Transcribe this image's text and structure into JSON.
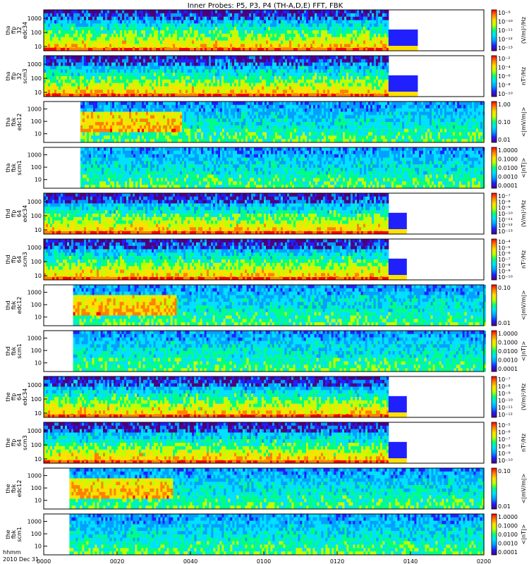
{
  "chart_data": {
    "type": "heatmap",
    "title": "Inner Probes: P5, P3, P4 (TH-A,D,E) FFT, FBK",
    "xaxis": {
      "label_line1": "hhmm",
      "label_line2": "2010 Dec 31",
      "ticks": [
        "0000",
        "0020",
        "0040",
        "0100",
        "0120",
        "0140",
        "0200"
      ],
      "range_minutes": [
        0,
        120
      ]
    },
    "colors": {
      "colormap": [
        "#4b0082",
        "#2020ff",
        "#00a0ff",
        "#00e0ff",
        "#00ff80",
        "#c0ff00",
        "#ffe000",
        "#ff8000",
        "#ff0000"
      ],
      "data_gap": "#ffffff",
      "frame": "#000000"
    },
    "panels": [
      {
        "id": "tha-ffp-edc34",
        "label": [
          "tha",
          "ffp",
          "32",
          "edc34"
        ],
        "yticks": [
          "1000",
          "100",
          "10"
        ],
        "ymin": 5,
        "ymax": 4000,
        "cb_label": "(V/m)²/Hz",
        "cb_ticks": [
          "10⁻⁹",
          "10⁻¹⁰",
          "10⁻¹¹",
          "10⁻¹²",
          "10⁻¹³"
        ],
        "data_start_min": 0,
        "data_end_min": 94,
        "tail_end_min": 102
      },
      {
        "id": "tha-ffp-scm3",
        "label": [
          "tha",
          "ffp",
          "32",
          "scm3"
        ],
        "yticks": [
          "1000",
          "100",
          "10"
        ],
        "ymin": 5,
        "ymax": 4000,
        "cb_label": "nT²/Hz",
        "cb_ticks": [
          "10⁻²",
          "10⁻⁴",
          "10⁻⁶",
          "10⁻⁸",
          "10⁻¹⁰"
        ],
        "data_start_min": 0,
        "data_end_min": 94,
        "tail_end_min": 102
      },
      {
        "id": "tha-fbk-edc12",
        "label": [
          "tha",
          "fbk",
          "edc12"
        ],
        "yticks": [
          "1000",
          "100",
          "10"
        ],
        "ymin": 2,
        "ymax": 4000,
        "cb_label": "<|mV/m|>",
        "cb_ticks": [
          "1.00",
          "0.10",
          "0.01"
        ],
        "data_start_min": 10,
        "data_end_min": 120,
        "tail_end_min": 120
      },
      {
        "id": "tha-fbk-scm1",
        "label": [
          "tha",
          "fbk",
          "scm1"
        ],
        "yticks": [
          "1000",
          "100",
          "10"
        ],
        "ymin": 2,
        "ymax": 4000,
        "cb_label": "<|nT|>",
        "cb_ticks": [
          "1.0000",
          "0.1000",
          "0.0100",
          "0.0010",
          "0.0001"
        ],
        "data_start_min": 10,
        "data_end_min": 120,
        "tail_end_min": 120
      },
      {
        "id": "thd-ffp-edc34",
        "label": [
          "thd",
          "ffp",
          "64",
          "edc34"
        ],
        "yticks": [
          "1000",
          "100",
          "10"
        ],
        "ymin": 5,
        "ymax": 4000,
        "cb_label": "(V/m)²/Hz",
        "cb_ticks": [
          "10⁻⁷",
          "10⁻⁸",
          "10⁻⁹",
          "10⁻¹⁰",
          "10⁻¹¹",
          "10⁻¹²",
          "10⁻¹³"
        ],
        "data_start_min": 0,
        "data_end_min": 94,
        "tail_end_min": 99
      },
      {
        "id": "thd-ffp-scm3",
        "label": [
          "thd",
          "ffp",
          "64",
          "scm3"
        ],
        "yticks": [
          "1000",
          "100",
          "10"
        ],
        "ymin": 5,
        "ymax": 4000,
        "cb_label": "nT²/Hz",
        "cb_ticks": [
          "10⁻⁴",
          "10⁻⁵",
          "10⁻⁶",
          "10⁻⁷",
          "10⁻⁸",
          "10⁻⁹",
          "10⁻¹⁰"
        ],
        "data_start_min": 0,
        "data_end_min": 94,
        "tail_end_min": 99
      },
      {
        "id": "thd-fbk-edc12",
        "label": [
          "thd",
          "fbk",
          "edc12"
        ],
        "yticks": [
          "1000",
          "100",
          "10"
        ],
        "ymin": 2,
        "ymax": 4000,
        "cb_label": "<|mV/m|>",
        "cb_ticks": [
          "0.10",
          "0.01"
        ],
        "data_start_min": 8,
        "data_end_min": 120,
        "tail_end_min": 120
      },
      {
        "id": "thd-fbk-scm1",
        "label": [
          "thd",
          "fbk",
          "scm1"
        ],
        "yticks": [
          "1000",
          "100",
          "10"
        ],
        "ymin": 2,
        "ymax": 4000,
        "cb_label": "<|nT|>",
        "cb_ticks": [
          "1.0000",
          "0.1000",
          "0.0100",
          "0.0010",
          "0.0001"
        ],
        "data_start_min": 8,
        "data_end_min": 120,
        "tail_end_min": 120
      },
      {
        "id": "the-ffp-edc34",
        "label": [
          "the",
          "ffp",
          "64",
          "edc34"
        ],
        "yticks": [
          "1000",
          "100",
          "10"
        ],
        "ymin": 5,
        "ymax": 4000,
        "cb_label": "(V/m)²/Hz",
        "cb_ticks": [
          "10⁻⁷",
          "10⁻⁸",
          "10⁻⁹",
          "10⁻¹⁰",
          "10⁻¹¹",
          "10⁻¹²"
        ],
        "data_start_min": 0,
        "data_end_min": 94,
        "tail_end_min": 99
      },
      {
        "id": "the-ffp-scm3",
        "label": [
          "the",
          "ffp",
          "64",
          "scm3"
        ],
        "yticks": [
          "1000",
          "100",
          "10"
        ],
        "ymin": 5,
        "ymax": 4000,
        "cb_label": "nT²/Hz",
        "cb_ticks": [
          "10⁻⁵",
          "10⁻⁶",
          "10⁻⁷",
          "10⁻⁸",
          "10⁻⁹",
          "10⁻¹⁰"
        ],
        "data_start_min": 0,
        "data_end_min": 94,
        "tail_end_min": 99
      },
      {
        "id": "the-fbk-edc12",
        "label": [
          "the",
          "fbk",
          "edc12"
        ],
        "yticks": [
          "1000",
          "100",
          "10"
        ],
        "ymin": 2,
        "ymax": 4000,
        "cb_label": "<|mV/m|>",
        "cb_ticks": [
          "0.10",
          "0.01"
        ],
        "data_start_min": 7,
        "data_end_min": 120,
        "tail_end_min": 120
      },
      {
        "id": "the-fbk-scm1",
        "label": [
          "the",
          "fbk",
          "scm1"
        ],
        "yticks": [
          "1000",
          "100",
          "10"
        ],
        "ymin": 2,
        "ymax": 4000,
        "cb_label": "<|nT|>",
        "cb_ticks": [
          "1.0000",
          "0.1000",
          "0.0100",
          "0.0010",
          "0.0001"
        ],
        "data_start_min": 7,
        "data_end_min": 120,
        "tail_end_min": 120
      }
    ]
  }
}
